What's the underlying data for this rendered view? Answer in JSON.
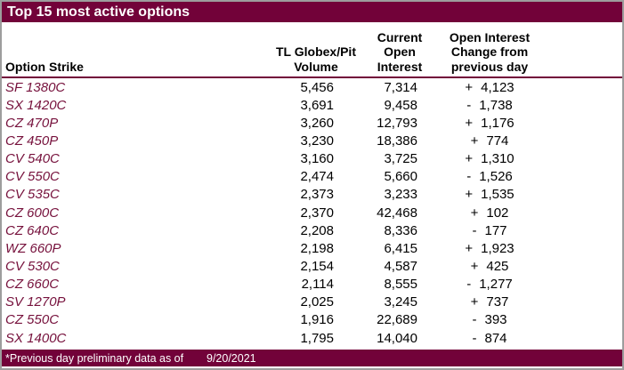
{
  "window_title": "Top 15 most active options",
  "colors": {
    "maroon": "#720239",
    "strike_text": "#76113C",
    "border_gray": "#9d9d9d"
  },
  "header": {
    "strike_label": "Option Strike",
    "volume_lines": [
      "TL Globex/Pit",
      "Volume"
    ],
    "open_interest_lines": [
      "Current",
      "Open",
      "Interest"
    ],
    "change_lines": [
      "Open Interest",
      "Change from",
      "previous day"
    ]
  },
  "rows": [
    {
      "strike": "SF 1380C",
      "volume": "5,456",
      "open_interest": "7,314",
      "change_sign": "+",
      "change_value": "4,123"
    },
    {
      "strike": "SX 1420C",
      "volume": "3,691",
      "open_interest": "9,458",
      "change_sign": "-",
      "change_value": "1,738"
    },
    {
      "strike": "CZ 470P",
      "volume": "3,260",
      "open_interest": "12,793",
      "change_sign": "+",
      "change_value": "1,176"
    },
    {
      "strike": "CZ 450P",
      "volume": "3,230",
      "open_interest": "18,386",
      "change_sign": "+",
      "change_value": "774"
    },
    {
      "strike": "CV 540C",
      "volume": "3,160",
      "open_interest": "3,725",
      "change_sign": "+",
      "change_value": "1,310"
    },
    {
      "strike": "CV 550C",
      "volume": "2,474",
      "open_interest": "5,660",
      "change_sign": "-",
      "change_value": "1,526"
    },
    {
      "strike": "CV 535C",
      "volume": "2,373",
      "open_interest": "3,233",
      "change_sign": "+",
      "change_value": "1,535"
    },
    {
      "strike": "CZ 600C",
      "volume": "2,370",
      "open_interest": "42,468",
      "change_sign": "+",
      "change_value": "102"
    },
    {
      "strike": "CZ 640C",
      "volume": "2,208",
      "open_interest": "8,336",
      "change_sign": "-",
      "change_value": "177"
    },
    {
      "strike": "WZ 660P",
      "volume": "2,198",
      "open_interest": "6,415",
      "change_sign": "+",
      "change_value": "1,923"
    },
    {
      "strike": "CV 530C",
      "volume": "2,154",
      "open_interest": "4,587",
      "change_sign": "+",
      "change_value": "425"
    },
    {
      "strike": "CZ 660C",
      "volume": "2,114",
      "open_interest": "8,555",
      "change_sign": "-",
      "change_value": "1,277"
    },
    {
      "strike": "SV 1270P",
      "volume": "2,025",
      "open_interest": "3,245",
      "change_sign": "+",
      "change_value": "737"
    },
    {
      "strike": "CZ 550C",
      "volume": "1,916",
      "open_interest": "22,689",
      "change_sign": "-",
      "change_value": "393"
    },
    {
      "strike": "SX 1400C",
      "volume": "1,795",
      "open_interest": "14,040",
      "change_sign": "-",
      "change_value": "874"
    }
  ],
  "footer": {
    "note": "*Previous day preliminary data as of",
    "date": "9/20/2021"
  },
  "chart_data": {
    "type": "table",
    "title": "Top 15 most active options",
    "columns": [
      "Option Strike",
      "TL Globex/Pit Volume",
      "Current Open Interest",
      "Open Interest Change from previous day"
    ],
    "rows": [
      [
        "SF 1380C",
        5456,
        7314,
        4123
      ],
      [
        "SX 1420C",
        3691,
        9458,
        -1738
      ],
      [
        "CZ 470P",
        3260,
        12793,
        1176
      ],
      [
        "CZ 450P",
        3230,
        18386,
        774
      ],
      [
        "CV 540C",
        3160,
        3725,
        1310
      ],
      [
        "CV 550C",
        2474,
        5660,
        -1526
      ],
      [
        "CV 535C",
        2373,
        3233,
        1535
      ],
      [
        "CZ 600C",
        2370,
        42468,
        102
      ],
      [
        "CZ 640C",
        2208,
        8336,
        -177
      ],
      [
        "WZ 660P",
        2198,
        6415,
        1923
      ],
      [
        "CV 530C",
        2154,
        4587,
        425
      ],
      [
        "CZ 660C",
        2114,
        8555,
        -1277
      ],
      [
        "SV 1270P",
        2025,
        3245,
        737
      ],
      [
        "CZ 550C",
        1916,
        22689,
        -393
      ],
      [
        "SX 1400C",
        1795,
        14040,
        -874
      ]
    ],
    "footnote": "*Previous day preliminary data as of 9/20/2021"
  }
}
